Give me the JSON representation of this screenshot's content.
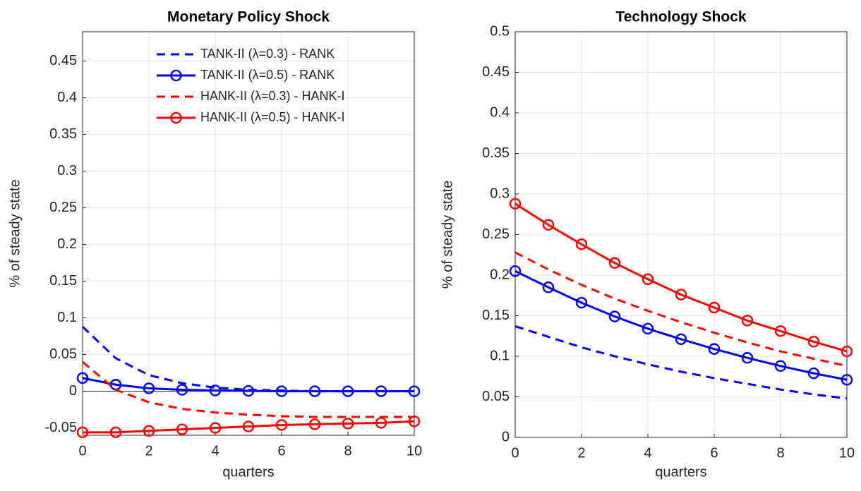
{
  "chart_data": [
    {
      "type": "line",
      "title": "Monetary Policy Shock",
      "xlabel": "quarters",
      "ylabel": "% of steady state",
      "x": [
        0,
        1,
        2,
        3,
        4,
        5,
        6,
        7,
        8,
        9,
        10
      ],
      "xlim": [
        0,
        10
      ],
      "xticks": [
        0,
        2,
        4,
        6,
        8,
        10
      ],
      "ylim": [
        -0.06,
        0.49
      ],
      "yticks": [
        -0.05,
        0,
        0.05,
        0.1,
        0.15,
        0.2,
        0.25,
        0.3,
        0.35,
        0.4,
        0.45
      ],
      "grid": true,
      "zero_line": true,
      "legend": "northeast",
      "series": [
        {
          "name": "TANK-II (λ=0.3) - RANK",
          "color": "#0000ff",
          "linestyle": "--",
          "marker": "none",
          "values": [
            0.088,
            0.045,
            0.022,
            0.011,
            0.005,
            0.002,
            0.001,
            0,
            0,
            0,
            0
          ]
        },
        {
          "name": "TANK-II (λ=0.5) - RANK",
          "color": "#0000ff",
          "linestyle": "-",
          "marker": "o",
          "values": [
            0.018,
            0.009,
            0.004,
            0.002,
            0.001,
            0.0005,
            0,
            0,
            0,
            0,
            0
          ]
        },
        {
          "name": "HANK-II (λ=0.3) - HANK-I",
          "color": "#ff0000",
          "linestyle": "--",
          "marker": "none",
          "values": [
            0.04,
            0.002,
            -0.015,
            -0.024,
            -0.029,
            -0.032,
            -0.034,
            -0.035,
            -0.035,
            -0.035,
            -0.035
          ]
        },
        {
          "name": "HANK-II (λ=0.5) - HANK-I",
          "color": "#ff0000",
          "linestyle": "-",
          "marker": "o",
          "values": [
            -0.056,
            -0.056,
            -0.054,
            -0.052,
            -0.05,
            -0.048,
            -0.046,
            -0.045,
            -0.044,
            -0.043,
            -0.041
          ]
        }
      ]
    },
    {
      "type": "line",
      "title": "Technology Shock",
      "xlabel": "quarters",
      "ylabel": "% of steady state",
      "x": [
        0,
        1,
        2,
        3,
        4,
        5,
        6,
        7,
        8,
        9,
        10
      ],
      "xlim": [
        0,
        10
      ],
      "xticks": [
        0,
        2,
        4,
        6,
        8,
        10
      ],
      "ylim": [
        0,
        0.5
      ],
      "yticks": [
        0,
        0.05,
        0.1,
        0.15,
        0.2,
        0.25,
        0.3,
        0.35,
        0.4,
        0.45,
        0.5
      ],
      "grid": true,
      "series": [
        {
          "color": "#0000ff",
          "linestyle": "--",
          "marker": "none",
          "values": [
            0.137,
            0.124,
            0.111,
            0.1,
            0.09,
            0.081,
            0.073,
            0.066,
            0.059,
            0.053,
            0.048
          ]
        },
        {
          "color": "#0000ff",
          "linestyle": "-",
          "marker": "o",
          "values": [
            0.205,
            0.185,
            0.166,
            0.149,
            0.134,
            0.121,
            0.109,
            0.098,
            0.088,
            0.079,
            0.071
          ]
        },
        {
          "color": "#ff0000",
          "linestyle": "--",
          "marker": "none",
          "values": [
            0.228,
            0.207,
            0.188,
            0.171,
            0.156,
            0.142,
            0.129,
            0.117,
            0.106,
            0.097,
            0.088
          ]
        },
        {
          "color": "#ff0000",
          "linestyle": "-",
          "marker": "o",
          "values": [
            0.288,
            0.262,
            0.238,
            0.215,
            0.195,
            0.176,
            0.16,
            0.144,
            0.131,
            0.118,
            0.106
          ]
        }
      ]
    }
  ]
}
